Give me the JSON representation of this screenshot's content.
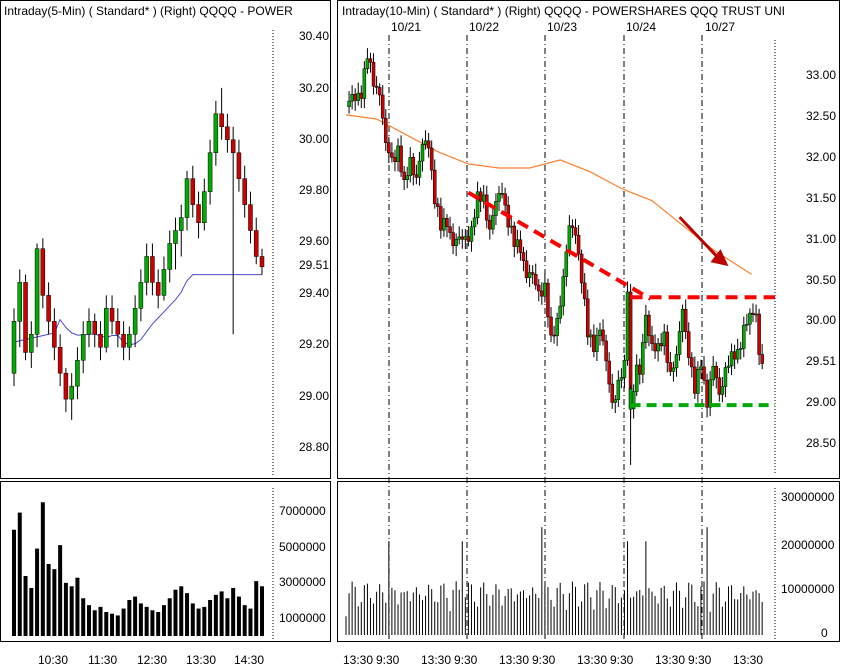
{
  "colors": {
    "up": "#00aa00",
    "down": "#cc0000",
    "wick": "#000000",
    "ma_left": "#4a4ad0",
    "ma_right": "#ff8030",
    "trend": "#ff0000",
    "support": "#00aa00",
    "arrow": "#bb0000"
  },
  "left_panel": {
    "title": "Intraday(5-Min) ( Standard* )    (Right)    QQQQ - POWER",
    "price_ticks": [
      "30.40",
      "30.20",
      "30.00",
      "29.80",
      "29.60",
      "29.51",
      "29.40",
      "29.20",
      "29.00",
      "28.80"
    ],
    "volume_ticks": [
      "7000000",
      "5000000",
      "3000000",
      "1000000"
    ],
    "time_labels": [
      "10:30",
      "11:30",
      "12:30",
      "13:30",
      "14:30"
    ]
  },
  "right_panel": {
    "title": "Intraday(10-Min) ( Standard* )    (Right)    QQQQ - POWERSHARES QQQ TRUST UNI",
    "date_labels": [
      "10/21",
      "10/22",
      "10/23",
      "10/24",
      "10/27"
    ],
    "price_ticks": [
      "33.00",
      "32.50",
      "32.00",
      "31.50",
      "31.00",
      "30.50",
      "30.00",
      "29.51",
      "29.00",
      "28.50"
    ],
    "volume_ticks": [
      "30000000",
      "20000000",
      "10000000",
      "0"
    ],
    "time_labels": [
      "13:30",
      "9:30",
      "13:30",
      "9:30",
      "13:30",
      "9:30",
      "13:30",
      "9:30",
      "13:30",
      "9:30",
      "13:30"
    ]
  },
  "chart_data": [
    {
      "type": "candlestick",
      "title": "Intraday(5-Min) ( Standard* )    (Right)    QQQQ - POWER",
      "price_range": [
        28.68,
        30.42
      ],
      "last_price": 29.51,
      "ohlc": [
        [
          29.1,
          29.35,
          29.05,
          29.3
        ],
        [
          29.3,
          29.5,
          29.2,
          29.45
        ],
        [
          29.45,
          29.48,
          29.15,
          29.18
        ],
        [
          29.18,
          29.3,
          29.12,
          29.25
        ],
        [
          29.25,
          29.6,
          29.2,
          29.58
        ],
        [
          29.58,
          29.62,
          29.35,
          29.4
        ],
        [
          29.4,
          29.45,
          29.25,
          29.3
        ],
        [
          29.3,
          29.35,
          29.15,
          29.2
        ],
        [
          29.2,
          29.25,
          29.05,
          29.1
        ],
        [
          29.1,
          29.12,
          28.95,
          29.0
        ],
        [
          29.0,
          29.1,
          28.92,
          29.05
        ],
        [
          29.05,
          29.2,
          29.0,
          29.15
        ],
        [
          29.15,
          29.3,
          29.1,
          29.25
        ],
        [
          29.25,
          29.35,
          29.2,
          29.3
        ],
        [
          29.3,
          29.33,
          29.2,
          29.25
        ],
        [
          29.25,
          29.3,
          29.15,
          29.2
        ],
        [
          29.2,
          29.4,
          29.18,
          29.35
        ],
        [
          29.35,
          29.4,
          29.25,
          29.3
        ],
        [
          29.3,
          29.35,
          29.2,
          29.25
        ],
        [
          29.25,
          29.3,
          29.15,
          29.2
        ],
        [
          29.2,
          29.28,
          29.15,
          29.25
        ],
        [
          29.25,
          29.4,
          29.2,
          29.35
        ],
        [
          29.35,
          29.5,
          29.3,
          29.45
        ],
        [
          29.45,
          29.6,
          29.4,
          29.55
        ],
        [
          29.55,
          29.6,
          29.4,
          29.45
        ],
        [
          29.45,
          29.5,
          29.35,
          29.4
        ],
        [
          29.4,
          29.55,
          29.38,
          29.5
        ],
        [
          29.5,
          29.65,
          29.45,
          29.6
        ],
        [
          29.6,
          29.7,
          29.5,
          29.65
        ],
        [
          29.65,
          29.75,
          29.55,
          29.7
        ],
        [
          29.7,
          29.88,
          29.65,
          29.85
        ],
        [
          29.85,
          29.9,
          29.7,
          29.75
        ],
        [
          29.75,
          29.8,
          29.62,
          29.68
        ],
        [
          29.68,
          29.85,
          29.65,
          29.8
        ],
        [
          29.8,
          30.0,
          29.75,
          29.95
        ],
        [
          29.95,
          30.15,
          29.9,
          30.1
        ],
        [
          30.1,
          30.2,
          30.0,
          30.05
        ],
        [
          30.05,
          30.1,
          29.95,
          30.0
        ],
        [
          30.0,
          30.05,
          29.25,
          29.95
        ],
        [
          29.95,
          30.0,
          29.8,
          29.85
        ],
        [
          29.85,
          29.9,
          29.7,
          29.75
        ],
        [
          29.75,
          29.8,
          29.6,
          29.65
        ],
        [
          29.65,
          29.7,
          29.52,
          29.55
        ],
        [
          29.55,
          29.58,
          29.48,
          29.51
        ]
      ],
      "volume": [
        6200000,
        7200000,
        3500000,
        2800000,
        5100000,
        7800000,
        4200000,
        3900000,
        5300000,
        3100000,
        2900000,
        3400000,
        2200000,
        1800000,
        1500000,
        1700000,
        1400000,
        1300000,
        1200000,
        1600000,
        2100000,
        2300000,
        1900000,
        1700000,
        1500000,
        1400000,
        1800000,
        2200000,
        2700000,
        2900000,
        2500000,
        1900000,
        1600000,
        1700000,
        2100000,
        2400000,
        2600000,
        2200000,
        2800000,
        2300000,
        1800000,
        1600000,
        3200000,
        2900000
      ]
    },
    {
      "type": "candlestick",
      "title": "Intraday(10-Min) ( Standard* )    (Right)    QQQQ - POWERSHARES QQQ TRUST UNI",
      "price_range": [
        28.22,
        33.4
      ],
      "last_price": 29.51,
      "dates": [
        "10/21",
        "10/22",
        "10/23",
        "10/24",
        "10/27"
      ],
      "anchors": [
        [
          0,
          32.6
        ],
        [
          10,
          32.8
        ],
        [
          14,
          33.2
        ],
        [
          18,
          32.9
        ],
        [
          22,
          32.8
        ],
        [
          26,
          32.1
        ],
        [
          30,
          31.95
        ],
        [
          34,
          32.1
        ],
        [
          38,
          31.6
        ],
        [
          42,
          31.95
        ],
        [
          46,
          31.75
        ],
        [
          50,
          32.1
        ],
        [
          54,
          32.15
        ],
        [
          58,
          31.5
        ],
        [
          62,
          31.1
        ],
        [
          66,
          31.2
        ],
        [
          70,
          30.95
        ],
        [
          74,
          30.95
        ],
        [
          78,
          31.0
        ],
        [
          82,
          31.1
        ],
        [
          86,
          31.45
        ],
        [
          90,
          31.5
        ],
        [
          94,
          31.1
        ],
        [
          98,
          31.4
        ],
        [
          102,
          31.6
        ],
        [
          106,
          31.2
        ],
        [
          110,
          30.9
        ],
        [
          114,
          30.9
        ],
        [
          118,
          30.55
        ],
        [
          122,
          30.5
        ],
        [
          126,
          30.35
        ],
        [
          130,
          30.4
        ],
        [
          134,
          29.7
        ],
        [
          138,
          30.0
        ],
        [
          142,
          30.5
        ],
        [
          146,
          31.1
        ],
        [
          150,
          31.1
        ],
        [
          154,
          30.5
        ],
        [
          158,
          29.8
        ],
        [
          162,
          29.7
        ],
        [
          166,
          29.9
        ],
        [
          170,
          29.45
        ],
        [
          174,
          29.0
        ],
        [
          178,
          29.2
        ],
        [
          182,
          29.4
        ],
        [
          184,
          30.4
        ],
        [
          186,
          28.9
        ],
        [
          188,
          29.2
        ],
        [
          190,
          29.4
        ],
        [
          192,
          29.3
        ],
        [
          196,
          30.05
        ],
        [
          200,
          29.7
        ],
        [
          204,
          29.6
        ],
        [
          208,
          29.8
        ],
        [
          212,
          29.35
        ],
        [
          216,
          29.5
        ],
        [
          220,
          30.15
        ],
        [
          224,
          29.6
        ],
        [
          228,
          29.1
        ],
        [
          232,
          29.5
        ],
        [
          236,
          29.0
        ],
        [
          240,
          29.4
        ],
        [
          244,
          29.1
        ],
        [
          248,
          29.4
        ],
        [
          252,
          29.5
        ],
        [
          256,
          29.6
        ],
        [
          260,
          29.9
        ],
        [
          264,
          30.0
        ],
        [
          268,
          30.1
        ],
        [
          270,
          29.6
        ],
        [
          272,
          29.51
        ]
      ],
      "volume_scale": [
        0,
        32000000
      ],
      "trendline": [
        [
          80,
          31.55
        ],
        [
          199,
          30.25
        ]
      ],
      "resistance": 30.27,
      "support": 28.95,
      "trend_arrow": [
        [
          218,
          31.25
        ],
        [
          250,
          30.65
        ]
      ],
      "ma_points": [
        [
          0,
          32.5
        ],
        [
          20,
          32.45
        ],
        [
          40,
          32.25
        ],
        [
          60,
          32.05
        ],
        [
          80,
          31.9
        ],
        [
          100,
          31.85
        ],
        [
          120,
          31.85
        ],
        [
          140,
          31.95
        ],
        [
          160,
          31.8
        ],
        [
          180,
          31.6
        ],
        [
          200,
          31.45
        ],
        [
          220,
          31.15
        ],
        [
          240,
          30.85
        ],
        [
          265,
          30.55
        ]
      ]
    }
  ]
}
